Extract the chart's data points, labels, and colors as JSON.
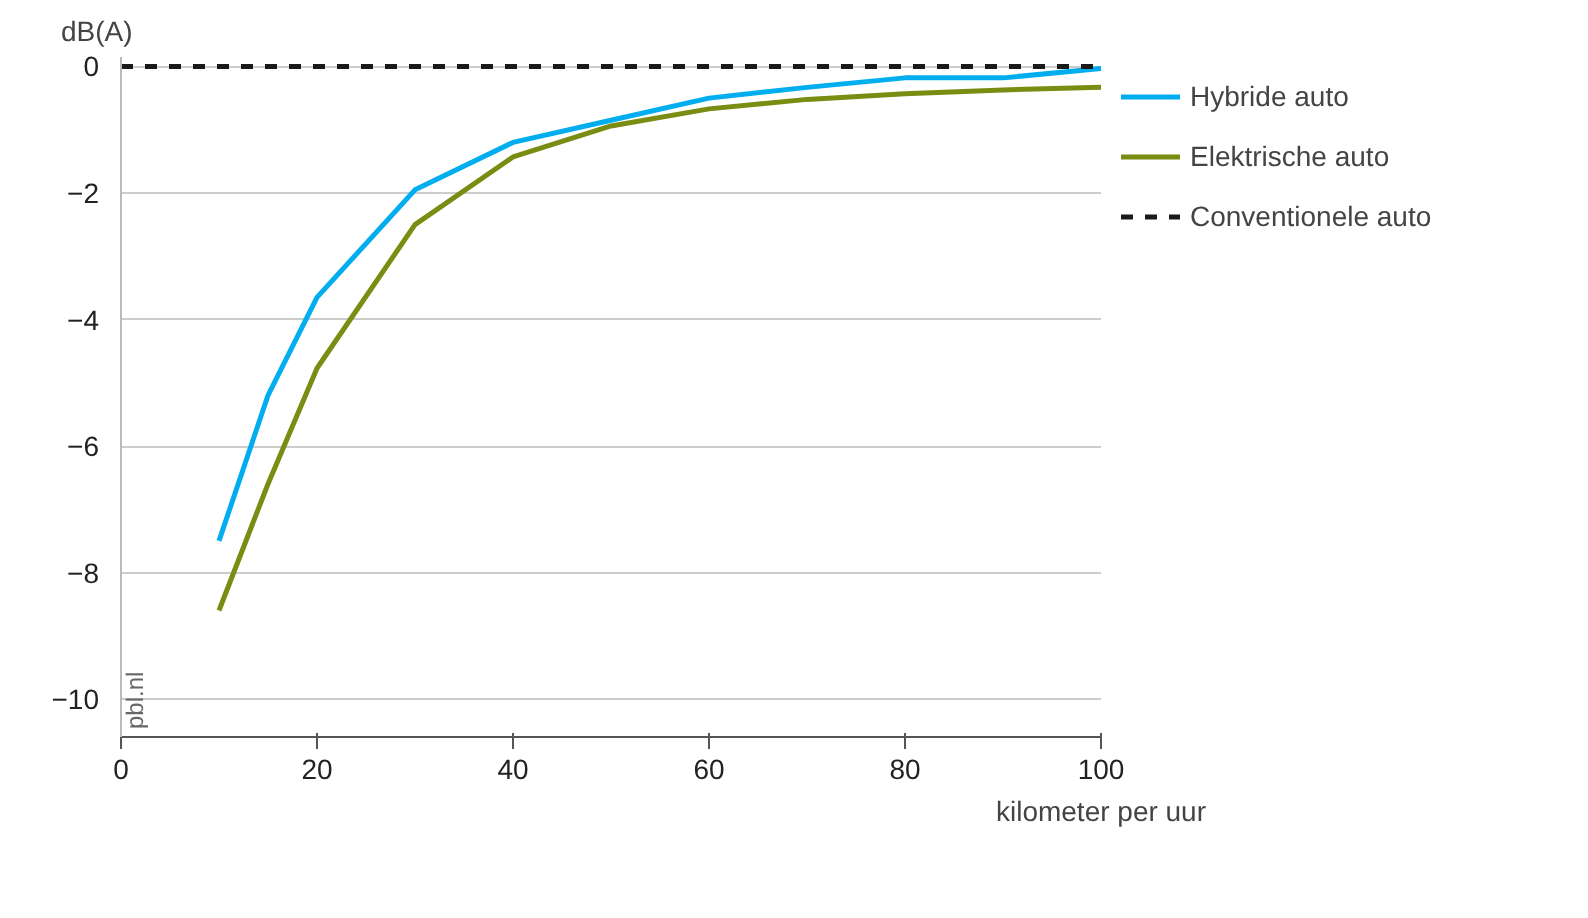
{
  "chart_data": {
    "type": "line",
    "ylabel": "dB(A)",
    "xlabel": "kilometer per uur",
    "xlim": [
      0,
      100
    ],
    "xticks": [
      0,
      20,
      40,
      60,
      80,
      100
    ],
    "ylim": [
      -10.6,
      0.15
    ],
    "yticks": [
      0,
      -2,
      -4,
      -6,
      -8,
      -10
    ],
    "grid": "y",
    "legend": "right",
    "annotations": [
      "pbl.nl"
    ],
    "series": [
      {
        "name": "Hybride auto",
        "color": "#00aeef",
        "x": [
          10,
          15,
          20,
          30,
          40,
          50,
          60,
          70,
          80,
          90,
          100
        ],
        "values": [
          -7.5,
          -5.2,
          -3.65,
          -1.95,
          -1.2,
          -0.85,
          -0.5,
          -0.33,
          -0.18,
          -0.18,
          -0.03
        ]
      },
      {
        "name": "Elektrische auto",
        "color": "#7a8c12",
        "x": [
          10,
          15,
          20,
          30,
          40,
          50,
          60,
          70,
          80,
          90,
          100
        ],
        "values": [
          -8.6,
          -6.6,
          -4.77,
          -2.5,
          -1.43,
          -0.94,
          -0.67,
          -0.52,
          -0.43,
          -0.37,
          -0.33
        ]
      },
      {
        "name": "Conventionele auto",
        "color": "#1a1a1a",
        "line_style": "dashed",
        "x": [
          0,
          100
        ],
        "values": [
          0,
          0
        ]
      }
    ]
  }
}
